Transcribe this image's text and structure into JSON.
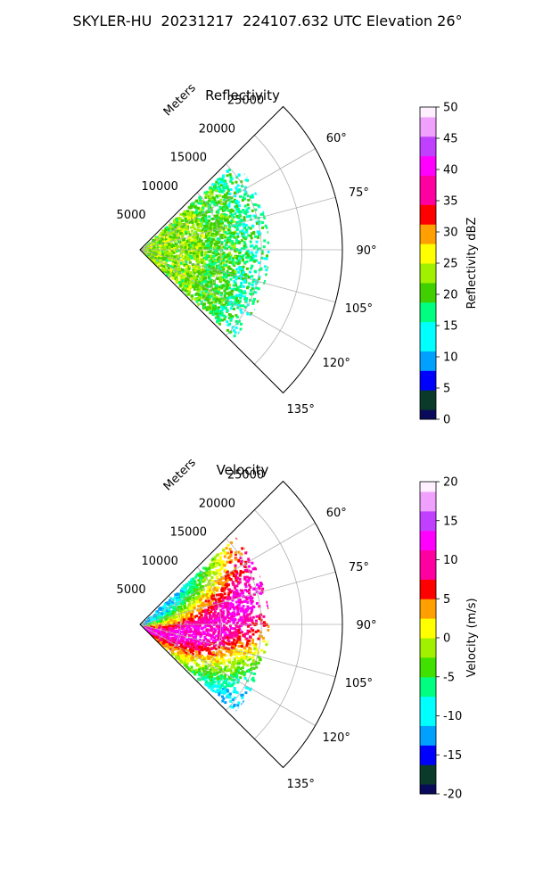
{
  "title": "SKYLER-HU  20231217  224107.632 UTC Elevation 26°",
  "chart_data": [
    {
      "type": "polar-sector",
      "title": "Reflectivity",
      "radial_axis_label": "Meters",
      "radial_ticks": [
        5000,
        10000,
        15000,
        20000,
        25000
      ],
      "radial_range": [
        0,
        25000
      ],
      "angle_range_deg": [
        45,
        135
      ],
      "angle_tick_labels": [
        "60°",
        "75°",
        "90°",
        "105°",
        "120°",
        "135°"
      ],
      "angle_ticks_deg": [
        60,
        75,
        90,
        105,
        120,
        135
      ],
      "grid": true,
      "data_extent_m": 16000,
      "field": "reflectivity",
      "colorbar": {
        "label": "Reflectivity dBZ",
        "min": 0,
        "max": 50,
        "ticks": [
          0,
          5,
          10,
          15,
          20,
          25,
          30,
          35,
          40,
          45,
          50
        ],
        "stops": [
          "#0a0a5a",
          "#0a3a2a",
          "#0000ff",
          "#00a0ff",
          "#00ffff",
          "#00ff80",
          "#40d000",
          "#a0f000",
          "#ffff00",
          "#ffa000",
          "#ff0000",
          "#ff00a0",
          "#ff00ff",
          "#c040ff",
          "#f0a0ff",
          "#fff0ff"
        ]
      }
    },
    {
      "type": "polar-sector",
      "title": "Velocity",
      "radial_axis_label": "Meters",
      "radial_ticks": [
        5000,
        10000,
        15000,
        20000,
        25000
      ],
      "radial_range": [
        0,
        25000
      ],
      "angle_range_deg": [
        45,
        135
      ],
      "angle_tick_labels": [
        "60°",
        "75°",
        "90°",
        "105°",
        "120°",
        "135°"
      ],
      "angle_ticks_deg": [
        60,
        75,
        90,
        105,
        120,
        135
      ],
      "grid": true,
      "data_extent_m": 16000,
      "field": "velocity",
      "colorbar": {
        "label": "Velocity (m/s)",
        "min": -20,
        "max": 20,
        "ticks": [
          -20,
          -15,
          -10,
          -5,
          0,
          5,
          10,
          15,
          20
        ],
        "stops": [
          "#0a0a5a",
          "#0a3a2a",
          "#0000ff",
          "#00a0ff",
          "#00ffff",
          "#00ff80",
          "#40e000",
          "#a0f000",
          "#ffff00",
          "#ffa000",
          "#ff0000",
          "#ff00a0",
          "#ff00ff",
          "#c040ff",
          "#f0a0ff",
          "#fff0ff"
        ]
      }
    }
  ]
}
